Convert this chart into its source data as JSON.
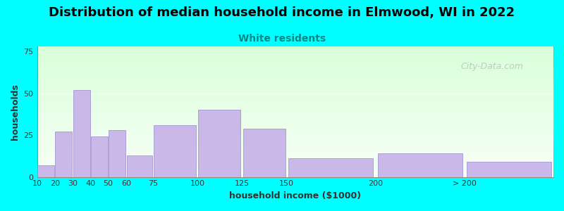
{
  "title": "Distribution of median household income in Elmwood, WI in 2022",
  "subtitle": "White residents",
  "xlabel": "household income ($1000)",
  "ylabel": "households",
  "background_outer": "#00FFFF",
  "bar_color": "#C9B8E8",
  "bar_edge_color": "#9988CC",
  "plot_bg_top": "#FFFFFF",
  "plot_bg_bottom": "#DDEEDD",
  "title_fontsize": 14,
  "subtitle_color": "#008888",
  "watermark": "City-Data.com",
  "categories": [
    "10",
    "20",
    "30",
    "40",
    "50",
    "60",
    "75",
    "100",
    "125",
    "150",
    "200",
    "> 200"
  ],
  "values": [
    7,
    27,
    52,
    24,
    28,
    13,
    31,
    40,
    29,
    11,
    14,
    9
  ],
  "bar_widths": [
    10,
    10,
    10,
    10,
    10,
    15,
    25,
    25,
    25,
    50,
    50,
    50
  ],
  "bar_lefts": [
    10,
    20,
    30,
    40,
    50,
    60,
    75,
    100,
    125,
    150,
    200,
    250
  ],
  "ylim": [
    0,
    78
  ],
  "yticks": [
    0,
    25,
    50,
    75
  ],
  "xtick_positions": [
    10,
    20,
    30,
    40,
    50,
    60,
    75,
    100,
    125,
    150,
    200,
    250
  ],
  "xtick_labels": [
    "10",
    "20",
    "30",
    "40",
    "50",
    "60",
    "75",
    "100",
    "125",
    "150",
    "200",
    "> 200"
  ]
}
